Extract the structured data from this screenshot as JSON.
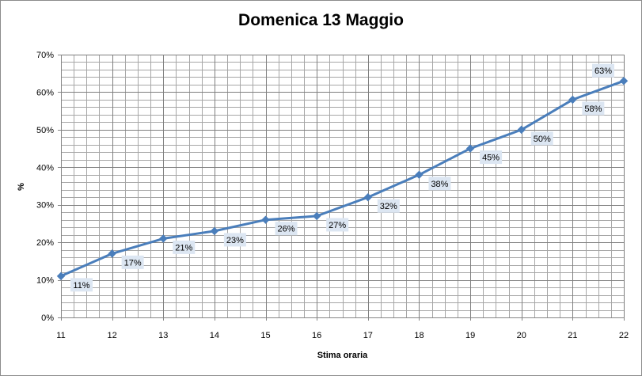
{
  "chart_data": {
    "type": "line",
    "title": "Domenica 13 Maggio",
    "xlabel": "Stima oraria",
    "ylabel": "%",
    "x": [
      11,
      12,
      13,
      14,
      15,
      16,
      17,
      18,
      19,
      20,
      21,
      22
    ],
    "series": [
      {
        "values": [
          11,
          17,
          21,
          23,
          26,
          27,
          32,
          38,
          45,
          50,
          58,
          63
        ]
      }
    ],
    "data_labels": [
      "11%",
      "17%",
      "21%",
      "23%",
      "26%",
      "27%",
      "32%",
      "38%",
      "45%",
      "50%",
      "58%",
      "63%"
    ],
    "xlim": [
      11,
      22
    ],
    "ylim": [
      0,
      70
    ],
    "y_ticks": [
      "0%",
      "10%",
      "20%",
      "30%",
      "40%",
      "50%",
      "60%",
      "70%"
    ],
    "x_ticks": [
      "11",
      "12",
      "13",
      "14",
      "15",
      "16",
      "17",
      "18",
      "19",
      "20",
      "21",
      "22"
    ],
    "grid": true,
    "legend": "none",
    "colors": {
      "line": "#4a7ebb",
      "grid": "#a6a6a6",
      "label_bg": "#dce6f2"
    }
  }
}
